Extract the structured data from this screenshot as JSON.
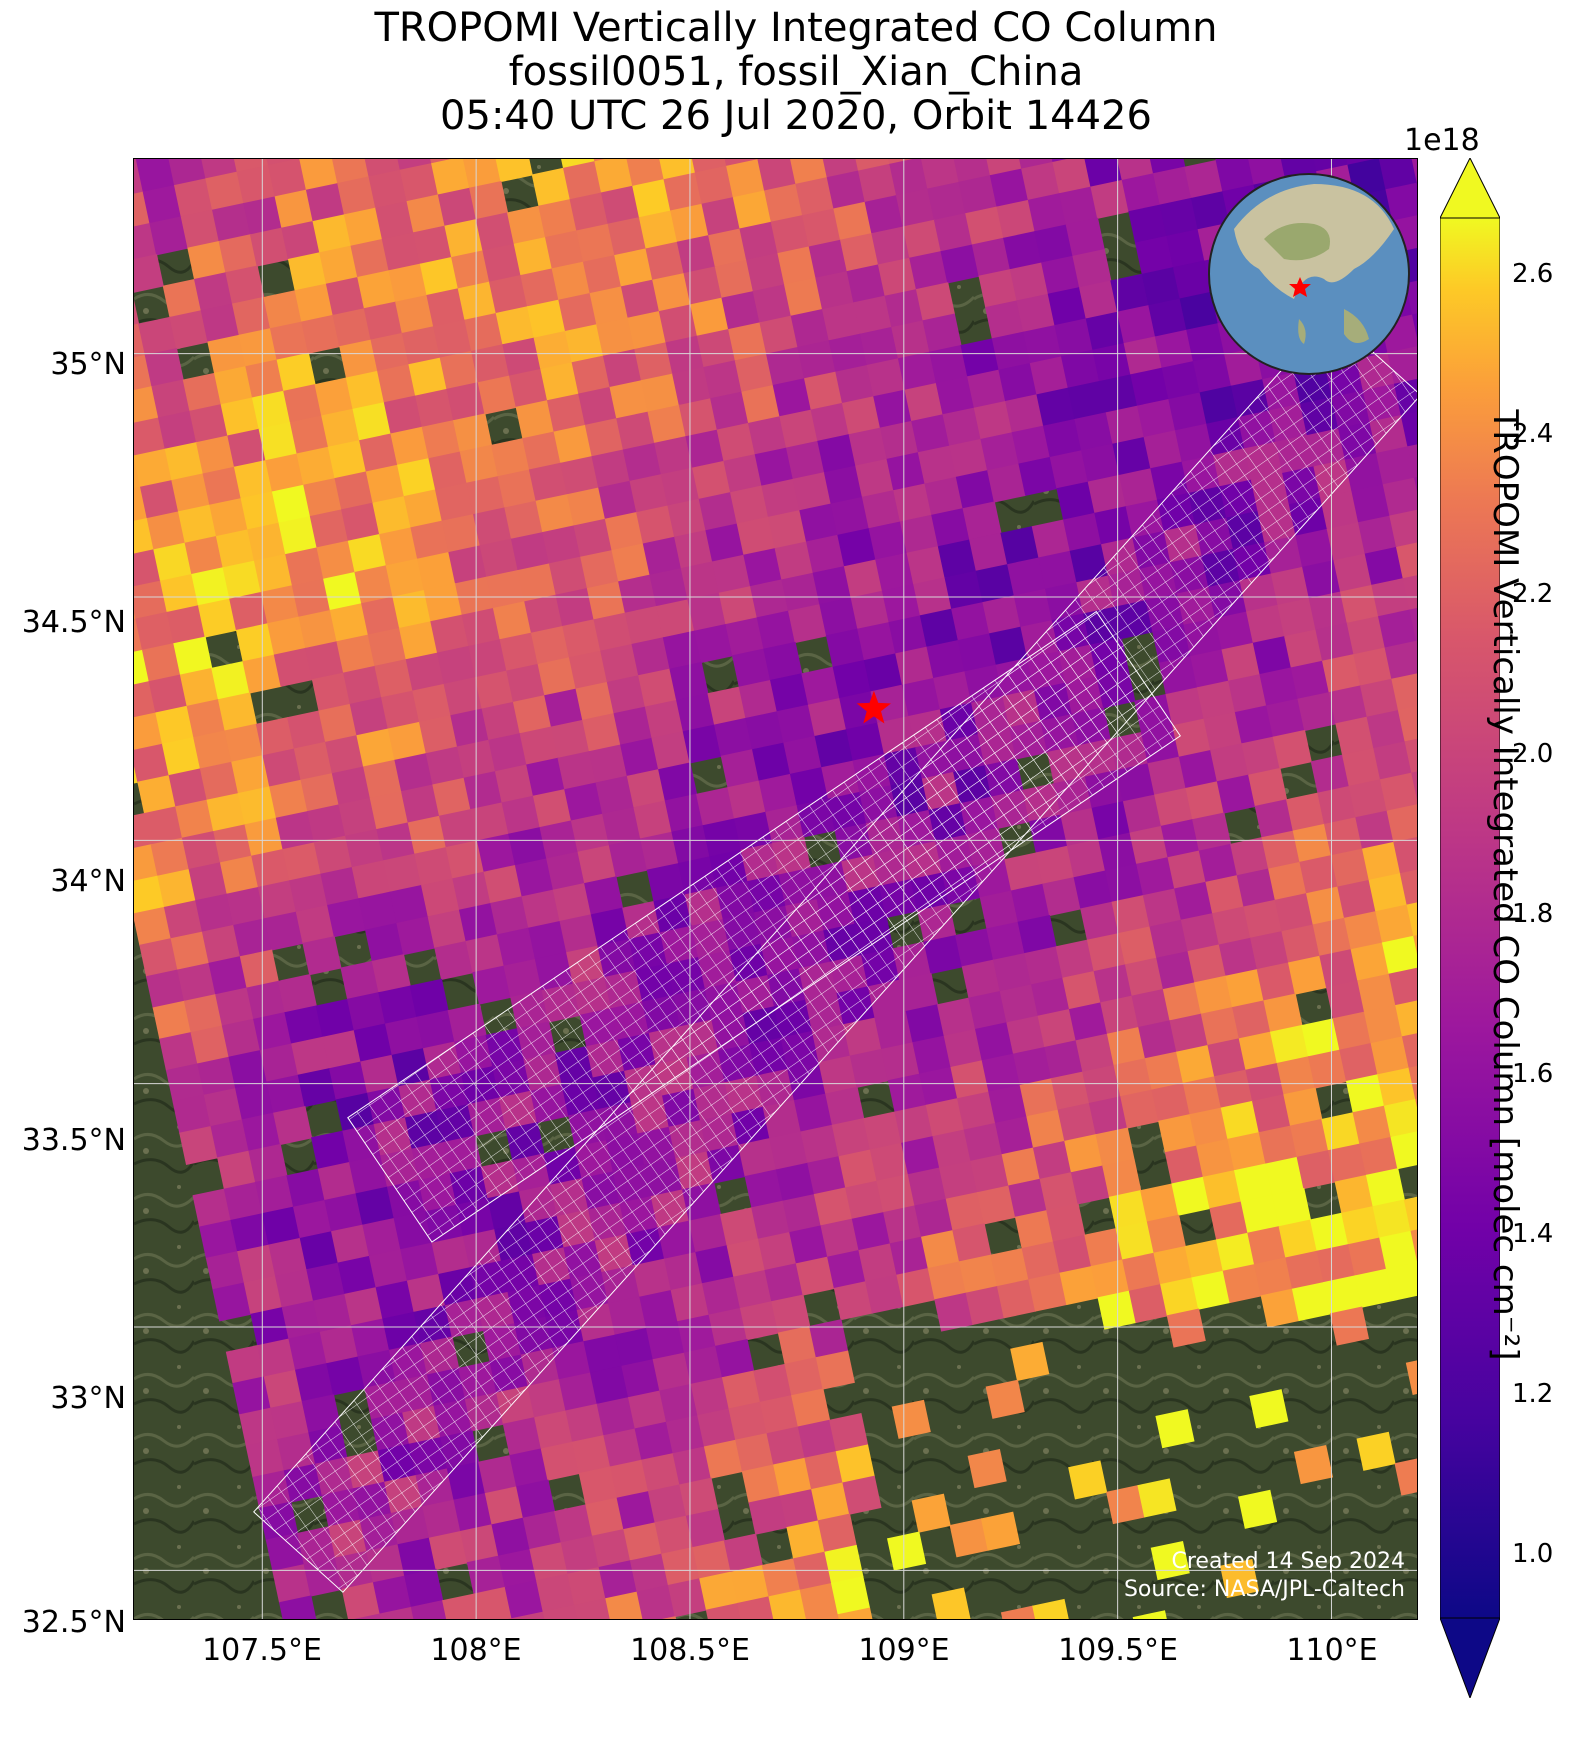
{
  "title": {
    "line1": "TROPOMI Vertically Integrated CO Column",
    "line2": "fossil0051, fossil_Xian_China",
    "line3": "05:40 UTC 26 Jul 2020, Orbit 14426"
  },
  "map": {
    "lon_range": [
      107.2,
      110.2
    ],
    "lat_range": [
      32.4,
      35.4
    ],
    "lon_ticks": [
      107.5,
      108.0,
      108.5,
      109.0,
      109.5,
      110.0
    ],
    "lon_tick_labels": [
      "107.5°E",
      "108°E",
      "108.5°E",
      "109°E",
      "109.5°E",
      "110°E"
    ],
    "lat_ticks": [
      32.5,
      33.0,
      33.5,
      34.0,
      34.5,
      35.0
    ],
    "lat_tick_labels": [
      "32.5°N",
      "33°N",
      "33.5°N",
      "34°N",
      "34.5°N",
      "35°N"
    ],
    "target": {
      "name": "fossil_Xian_China",
      "lon": 108.93,
      "lat": 34.27,
      "marker": "red-star-icon"
    },
    "inset": "globe-icon",
    "gridlines": true,
    "credit_line1": "Created 14 Sep 2024",
    "credit_line2": "Source: NASA/JPL-Caltech"
  },
  "colorbar": {
    "label": "TROPOMI Vertically Integrated CO Column [molec cm⁻²]",
    "scale_label": "1e18",
    "vmin": 0.92,
    "vmax": 2.67,
    "ticks": [
      1.0,
      1.2,
      1.4,
      1.6,
      1.8,
      2.0,
      2.2,
      2.4,
      2.6
    ],
    "tick_labels": [
      "1.0",
      "1.2",
      "1.4",
      "1.6",
      "1.8",
      "2.0",
      "2.2",
      "2.4",
      "2.6"
    ],
    "colormap": "plasma",
    "extend": "both"
  },
  "chart_data": {
    "type": "heatmap",
    "title": "TROPOMI Vertically Integrated CO Column",
    "xlabel": "",
    "ylabel": "",
    "xlim": [
      107.2,
      110.2
    ],
    "ylim": [
      32.4,
      35.4
    ],
    "units": "1e18 molec cm-2",
    "grid": true,
    "legend": "right colorbar",
    "colors": {
      "star": "#ff0000",
      "gridline": "#d8d8d8",
      "footprint_outline": "#ffffff",
      "terrain": "#3c4a2c"
    }
  }
}
